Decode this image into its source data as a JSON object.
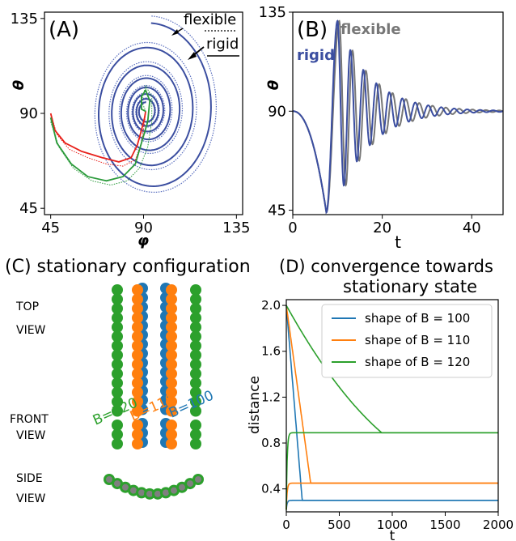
{
  "colors": {
    "rigid": "#3b4ea0",
    "flexible": "#5a6fbf",
    "flexible_gray": "#777777",
    "red": "#e8201a",
    "green": "#2a9a3a",
    "c_blue": "#1f77b4",
    "c_orange": "#ff7f0e",
    "c_green": "#2ca02c",
    "gray_bead": "#7f7f7f"
  },
  "panels": {
    "a": {
      "label": "(A)",
      "legend_flexible": "flexible",
      "legend_rigid": "rigid"
    },
    "b": {
      "label": "(B)",
      "legend_flexible": "flexible",
      "legend_rigid": "rigid"
    },
    "c": {
      "label": "(C) stationary configuration",
      "top_view": [
        "TOP",
        "VIEW"
      ],
      "front_view": [
        "FRONT",
        "VIEW"
      ],
      "side_view": [
        "SIDE",
        "VIEW"
      ],
      "b120": "B=120",
      "b110": "B=110",
      "b100": "B=100"
    },
    "d": {
      "label_line1": "(D) convergence towards",
      "label_line2": "stationary state"
    }
  },
  "chart_data": [
    {
      "panel": "A",
      "type": "line",
      "xlabel": "φ",
      "ylabel": "θ",
      "xlim": [
        45,
        135
      ],
      "ylim": [
        45,
        135
      ],
      "xticks": [
        45,
        90,
        135
      ],
      "yticks": [
        45,
        90,
        135
      ],
      "series": [
        {
          "name": "flexible",
          "style": "dotted"
        },
        {
          "name": "rigid",
          "style": "solid"
        }
      ],
      "spiral_center": [
        91,
        91
      ]
    },
    {
      "panel": "B",
      "type": "line",
      "xlabel": "t",
      "ylabel": "θ",
      "xlim": [
        0,
        47
      ],
      "ylim": [
        43,
        135
      ],
      "xticks": [
        0,
        20,
        40
      ],
      "yticks": [
        45,
        90,
        135
      ],
      "series": [
        {
          "name": "flexible"
        },
        {
          "name": "rigid"
        }
      ],
      "initial": 90,
      "minimum": {
        "t": 7.5,
        "theta": 44
      },
      "maximum": {
        "t": 10,
        "theta": 131
      },
      "final": 90
    },
    {
      "panel": "D",
      "type": "line",
      "xlabel": "t",
      "ylabel": "distance",
      "xlim": [
        0,
        2000
      ],
      "ylim": [
        0.2,
        2.05
      ],
      "xticks": [
        0,
        500,
        1000,
        1500,
        2000
      ],
      "yticks": [
        0.4,
        0.8,
        1.2,
        1.6,
        2.0
      ],
      "ytick_labels": [
        "0.4",
        "0.8",
        "1.2",
        "1.6",
        "2.0"
      ],
      "series": [
        {
          "name": "shape of B = 100",
          "start": 2.0,
          "final": 0.3,
          "converge_t": 150
        },
        {
          "name": "shape of B = 110",
          "start": 2.0,
          "final": 0.45,
          "converge_t": 230
        },
        {
          "name": "shape of B = 120",
          "start": 2.0,
          "final": 0.89,
          "converge_t": 900
        }
      ]
    }
  ]
}
